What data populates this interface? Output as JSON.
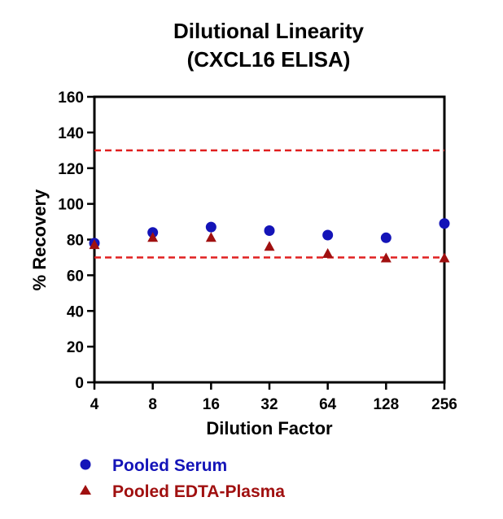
{
  "chart_data": {
    "type": "scatter",
    "title": [
      "Dilutional Linearity",
      "(CXCL16 ELISA)"
    ],
    "xlabel": "Dilution Factor",
    "ylabel": "% Recovery",
    "x_scale": "log2",
    "categories": [
      "4",
      "8",
      "16",
      "32",
      "64",
      "128",
      "256"
    ],
    "y_ticks": [
      "0",
      "20",
      "40",
      "60",
      "80",
      "100",
      "120",
      "140",
      "160"
    ],
    "ylim": [
      0,
      160
    ],
    "reference_lines": [
      130,
      70
    ],
    "reference_line_color": "#e02020",
    "grid": false,
    "legend_position": "bottom-left",
    "series": [
      {
        "name": "Pooled Serum",
        "marker": "circle",
        "color": "#1414b8",
        "values": [
          78,
          84,
          87,
          85,
          82.5,
          81,
          89
        ]
      },
      {
        "name": "Pooled EDTA-Plasma",
        "marker": "triangle",
        "color": "#a01010",
        "values": [
          77,
          81,
          81,
          76,
          72,
          69.5,
          69.5
        ]
      }
    ]
  }
}
